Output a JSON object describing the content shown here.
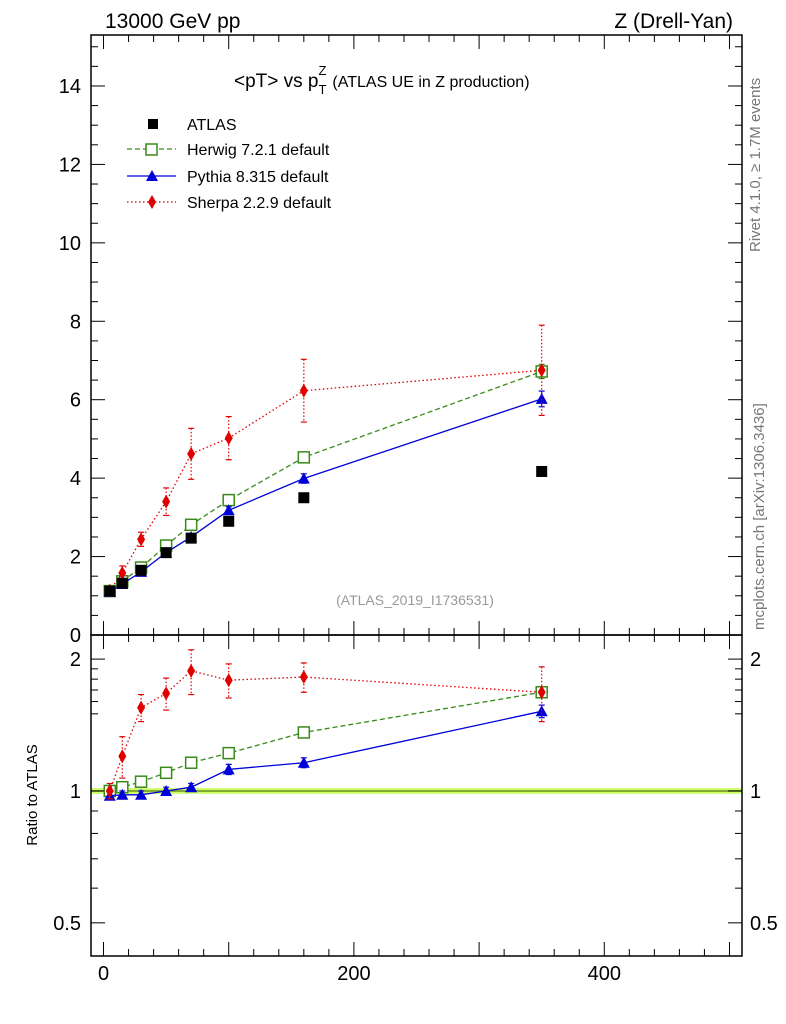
{
  "header": {
    "left_label": "13000 GeV pp",
    "right_label": "Z (Drell-Yan)"
  },
  "side_labels": {
    "rivet": "Rivet 4.1.0, ≥ 1.7M events",
    "mcplots": "mcplots.cern.ch [arXiv:1306.3436]"
  },
  "colors": {
    "atlas": "#000000",
    "herwig": "#3a8a1a",
    "pythia": "#0000d8",
    "sherpa": "#e00000",
    "band": "#ccff66"
  },
  "chart_data": [
    {
      "type": "scatter",
      "panel": "main",
      "title_main": "<pT> vs p",
      "title_sub": "T",
      "title_sup": "Z",
      "title_rest": "(ATLAS UE in Z production)",
      "watermark": "(ATLAS_2019_I1736531)",
      "xlim": [
        -10,
        510
      ],
      "ylim": [
        0,
        15.3
      ],
      "yticks": [
        0,
        2,
        4,
        6,
        8,
        10,
        12,
        14
      ],
      "ytick_labels": [
        "0",
        "2",
        "4",
        "6",
        "8",
        "10",
        "12",
        "14"
      ],
      "x": [
        5,
        15,
        30,
        50,
        70,
        100,
        160,
        350
      ],
      "series": [
        {
          "name": "ATLAS",
          "key": "atlas",
          "marker": "square-filled",
          "line": "none",
          "values": [
            1.12,
            1.32,
            1.65,
            2.1,
            2.47,
            2.9,
            3.5,
            4.17
          ],
          "err": [
            0.03,
            0.03,
            0.04,
            0.05,
            0.06,
            0.07,
            0.09,
            0.11
          ]
        },
        {
          "name": "Herwig 7.2.1 default",
          "key": "herwig",
          "marker": "square-open",
          "line": "dashed",
          "values": [
            1.12,
            1.37,
            1.72,
            2.28,
            2.81,
            3.44,
            4.53,
            6.72
          ],
          "err": [
            0.03,
            0.04,
            0.05,
            0.06,
            0.08,
            0.09,
            0.12,
            0.18
          ]
        },
        {
          "name": "Pythia 8.315 default",
          "key": "pythia",
          "marker": "triangle",
          "line": "solid",
          "values": [
            1.1,
            1.3,
            1.61,
            2.1,
            2.5,
            3.18,
            3.99,
            6.02
          ],
          "err": [
            0.03,
            0.04,
            0.05,
            0.06,
            0.07,
            0.09,
            0.12,
            0.2
          ]
        },
        {
          "name": "Sherpa 2.2.9 default",
          "key": "sherpa",
          "marker": "diamond",
          "line": "dotted",
          "values": [
            1.13,
            1.58,
            2.44,
            3.4,
            4.62,
            5.02,
            6.23,
            6.75
          ],
          "err": [
            0.06,
            0.18,
            0.18,
            0.35,
            0.65,
            0.55,
            0.8,
            1.15
          ]
        }
      ]
    },
    {
      "type": "scatter",
      "panel": "ratio",
      "ylabel": "Ratio to ATLAS",
      "xlim": [
        -10,
        510
      ],
      "ylim": [
        0.42,
        2.27
      ],
      "yticks": [
        0.5,
        1,
        2
      ],
      "ytick_labels": [
        "0.5",
        "1",
        "2"
      ],
      "xticks": [
        0,
        200,
        400
      ],
      "xtick_labels": [
        "0",
        "200",
        "400"
      ],
      "reference_band": [
        0.985,
        1.015
      ],
      "x": [
        5,
        15,
        30,
        50,
        70,
        100,
        160,
        350
      ],
      "series": [
        {
          "name": "Herwig 7.2.1 default",
          "key": "herwig",
          "marker": "square-open",
          "line": "dashed",
          "values": [
            1.0,
            1.02,
            1.05,
            1.1,
            1.16,
            1.22,
            1.36,
            1.68
          ],
          "err": [
            0.02,
            0.02,
            0.02,
            0.02,
            0.02,
            0.02,
            0.03,
            0.04
          ]
        },
        {
          "name": "Pythia 8.315 default",
          "key": "pythia",
          "marker": "triangle",
          "line": "solid",
          "values": [
            0.975,
            0.98,
            0.98,
            1.0,
            1.02,
            1.12,
            1.16,
            1.52
          ],
          "err": [
            0.02,
            0.02,
            0.02,
            0.02,
            0.02,
            0.03,
            0.03,
            0.05
          ]
        },
        {
          "name": "Sherpa 2.2.9 default",
          "key": "sherpa",
          "marker": "diamond",
          "line": "dotted",
          "values": [
            1.0,
            1.2,
            1.55,
            1.67,
            1.88,
            1.79,
            1.82,
            1.68
          ],
          "err": [
            0.04,
            0.13,
            0.11,
            0.14,
            0.22,
            0.16,
            0.14,
            0.24
          ]
        }
      ]
    }
  ]
}
